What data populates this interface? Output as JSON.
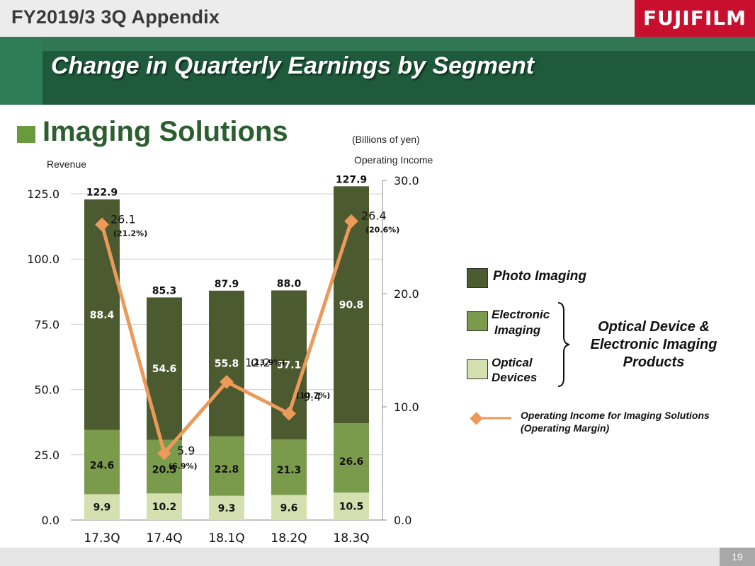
{
  "header": {
    "title": "FY2019/3 3Q  Appendix",
    "logo": "FUJIFILM",
    "slide_title": "Change in Quarterly Earnings by Segment",
    "section": "Imaging Solutions",
    "page_number": "19"
  },
  "units_note": "(Billions of yen)",
  "colors": {
    "photo": "#4b5a2f",
    "electronic": "#7a9a4c",
    "optical": "#d4e0b0",
    "line": "#eb9a5a",
    "band": "#1f5a3c"
  },
  "legend": {
    "photo": "Photo Imaging",
    "electronic_line1": "Electronic",
    "electronic_line2": "Imaging",
    "optical_line1": "Optical",
    "optical_line2": "Devices",
    "group_line1": "Optical Device &",
    "group_line2": "Electronic Imaging",
    "group_line3": "Products",
    "oi_line1": "Operating Income for Imaging Solutions",
    "oi_line2": "(Operating Margin)"
  },
  "chart_data": {
    "type": "bar",
    "stacked": true,
    "categories": [
      "17.3Q",
      "17.4Q",
      "18.1Q",
      "18.2Q",
      "18.3Q"
    ],
    "ylabel": "Revenue",
    "y2label": "Operating Income",
    "ylim": [
      0,
      125
    ],
    "y_ticks": [
      "0.0",
      "25.0",
      "50.0",
      "75.0",
      "100.0",
      "125.0"
    ],
    "y2lim": [
      0,
      30
    ],
    "y2_ticks": [
      "0.0",
      "10.0",
      "20.0",
      "30.0"
    ],
    "series": [
      {
        "name": "Optical Devices",
        "values": [
          9.9,
          10.2,
          9.3,
          9.6,
          10.5
        ],
        "labels": [
          "9.9",
          "10.2",
          "9.3",
          "9.6",
          "10.5"
        ]
      },
      {
        "name": "Electronic Imaging",
        "values": [
          24.6,
          20.5,
          22.8,
          21.3,
          26.6
        ],
        "labels": [
          "24.6",
          "20.5",
          "22.8",
          "21.3",
          "26.6"
        ]
      },
      {
        "name": "Photo Imaging",
        "values": [
          88.4,
          54.6,
          55.8,
          57.1,
          90.8
        ],
        "labels": [
          "88.4",
          "54.6",
          "55.8",
          "57.1",
          "90.8"
        ]
      }
    ],
    "totals": [
      "122.9",
      "85.3",
      "87.9",
      "88.0",
      "127.9"
    ],
    "line": {
      "name": "Operating Income for Imaging Solutions",
      "axis": "right",
      "values": [
        26.1,
        5.9,
        12.2,
        9.4,
        26.4
      ],
      "labels": [
        "26.1",
        "5.9",
        "12.2",
        "9.4",
        "26.4"
      ],
      "margins": [
        "(21.2%)",
        "(6.9%)",
        "(13.9%)",
        "(10.7%)",
        "(20.6%)"
      ]
    },
    "legend_position": "right"
  }
}
